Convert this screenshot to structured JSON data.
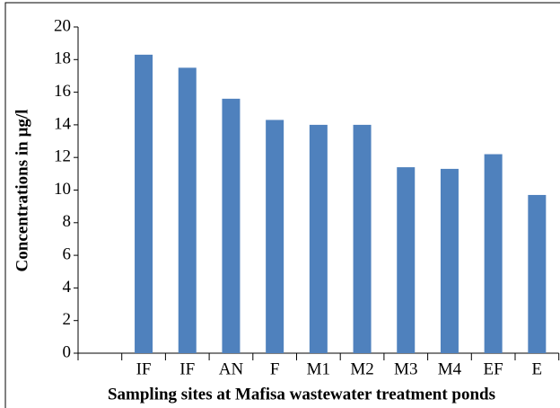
{
  "chart_data": {
    "type": "bar",
    "x_label": "Sampling sites at Mafisa wastewater treatment ponds",
    "y_label": "Concentrations in  µg/l",
    "categories": [
      null,
      "IF",
      "IF",
      "AN",
      "F",
      "M1",
      "M2",
      "M3",
      "M4",
      "EF",
      "E"
    ],
    "values": [
      null,
      18.3,
      17.5,
      15.6,
      14.3,
      14.0,
      14.0,
      11.4,
      11.3,
      12.2,
      9.7
    ],
    "color": "#4f81bd",
    "ylim": [
      0,
      20
    ],
    "yticks": [
      0,
      2,
      4,
      6,
      8,
      10,
      12,
      14,
      16,
      18,
      20
    ],
    "grid": false
  }
}
